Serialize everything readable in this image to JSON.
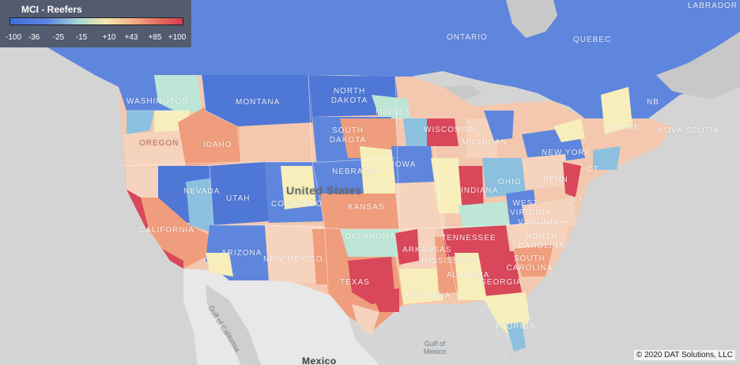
{
  "legend": {
    "title": "MCI - Reefers",
    "ticks": [
      "-100",
      "-36",
      "-25",
      "-15",
      "+10",
      "+43",
      "+85",
      "+100"
    ]
  },
  "labels": {
    "ontario": "ONTARIO",
    "quebec": "QUEBEC",
    "labrador": "LABRADOR",
    "nb": "NB",
    "nova_scotia": "NOVA SCOTIA",
    "washington": "WASHINGTON",
    "montana": "MONTANA",
    "north_dakota": "NORTH DAKOTA",
    "minnesota": "MINNES",
    "wisconsin": "WISCONSIN",
    "michigan": "MICHIGAN",
    "maine": "MAINE",
    "oregon": "OREGON",
    "idaho": "IDAHO",
    "south_dakota": "SOUTH DAKOTA",
    "iowa": "IOWA",
    "new_york": "NEW YORK",
    "nebraska": "NEBRASKA",
    "nevada": "NEVADA",
    "utah": "UTAH",
    "colorado": "COLORADO",
    "united_states": "United States",
    "kansas": "KANSAS",
    "indiana": "INDIANA",
    "ohio": "OHIO",
    "penn": "PENN",
    "nj": "NJ",
    "ct": "CT",
    "west_virginia": "WEST VIRGINIA",
    "virginia": "VIRGINIA",
    "california": "CALIFORNIA",
    "arizona": "ARIZONA",
    "new_mexico": "NEW MEXICO",
    "oklahoma": "OKLAHOMA",
    "arkansas": "ARKANSAS",
    "tennessee": "TENNESSEE",
    "north_carolina": "NORTH CAROLINA",
    "south_carolina": "SOUTH CAROLINA",
    "mississippi": "MISSISSIPPI",
    "alabama": "ALABAMA",
    "georgia": "GEORGIA",
    "texas": "TEXAS",
    "louisiana": "LOUISIANA",
    "florida": "FLORIDA",
    "gulf_of_california": "Gulf of California",
    "gulf_of_mexico": "Gulf of Mexico",
    "mexico": "Mexico"
  },
  "copyright": "© 2020 DAT Solutions, LLC",
  "colors": {
    "deep_blue": "#4f77d6",
    "blue": "#5f86dd",
    "light_blue": "#8cc0df",
    "teal": "#bde6d6",
    "cream": "#f7eebb",
    "peach": "#f6d3bd",
    "salmon": "#ef9d7c",
    "red": "#d9475a",
    "land_gray": "#e6e6e6",
    "water_gray": "#c8c8c8"
  }
}
